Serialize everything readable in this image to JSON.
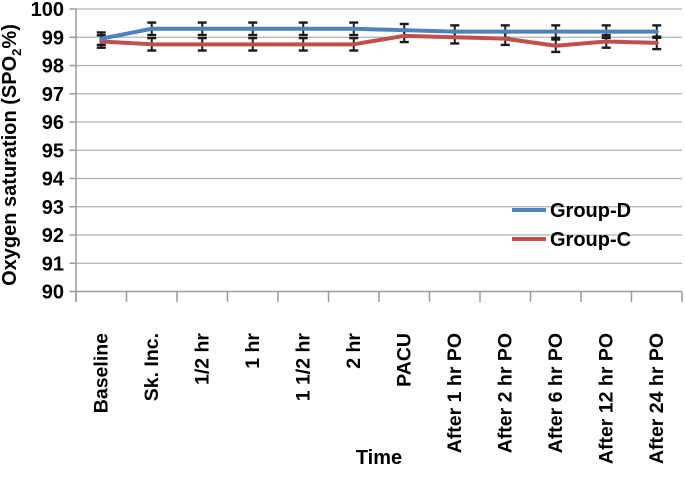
{
  "chart_data": {
    "type": "line",
    "title": "",
    "xlabel": "Time",
    "ylabel": "Oxygen saturation (SPO2%)",
    "ylabel_main": "Oxygen saturation (SPO",
    "ylabel_sub": "2",
    "ylabel_end": "%)",
    "ylim": [
      90,
      100
    ],
    "ytick_step": 1,
    "grid": true,
    "legend_position": "right-middle",
    "categories": [
      "Baseline",
      "Sk. Inc.",
      "1/2 hr",
      "1 hr",
      "1 1/2 hr",
      "2 hr",
      "PACU",
      "After 1 hr PO",
      "After 2 hr PO",
      "After 6 hr PO",
      "After 12 hr PO",
      "After 24 hr PO"
    ],
    "series": [
      {
        "name": "Group-D",
        "color": "#4F81BD",
        "error": 0.22,
        "values": [
          98.95,
          99.3,
          99.3,
          99.3,
          99.3,
          99.3,
          99.25,
          99.2,
          99.2,
          99.2,
          99.2,
          99.2
        ]
      },
      {
        "name": "Group-C",
        "color": "#C0504D",
        "error": 0.22,
        "values": [
          98.85,
          98.75,
          98.75,
          98.75,
          98.75,
          98.75,
          99.05,
          99.0,
          98.95,
          98.7,
          98.85,
          98.8
        ]
      }
    ],
    "colors": {
      "gridline": "#b3b3b3",
      "axis": "#9a9a9a",
      "errorbar": "#1a1a1a",
      "text": "#000000",
      "background": "#ffffff"
    }
  }
}
